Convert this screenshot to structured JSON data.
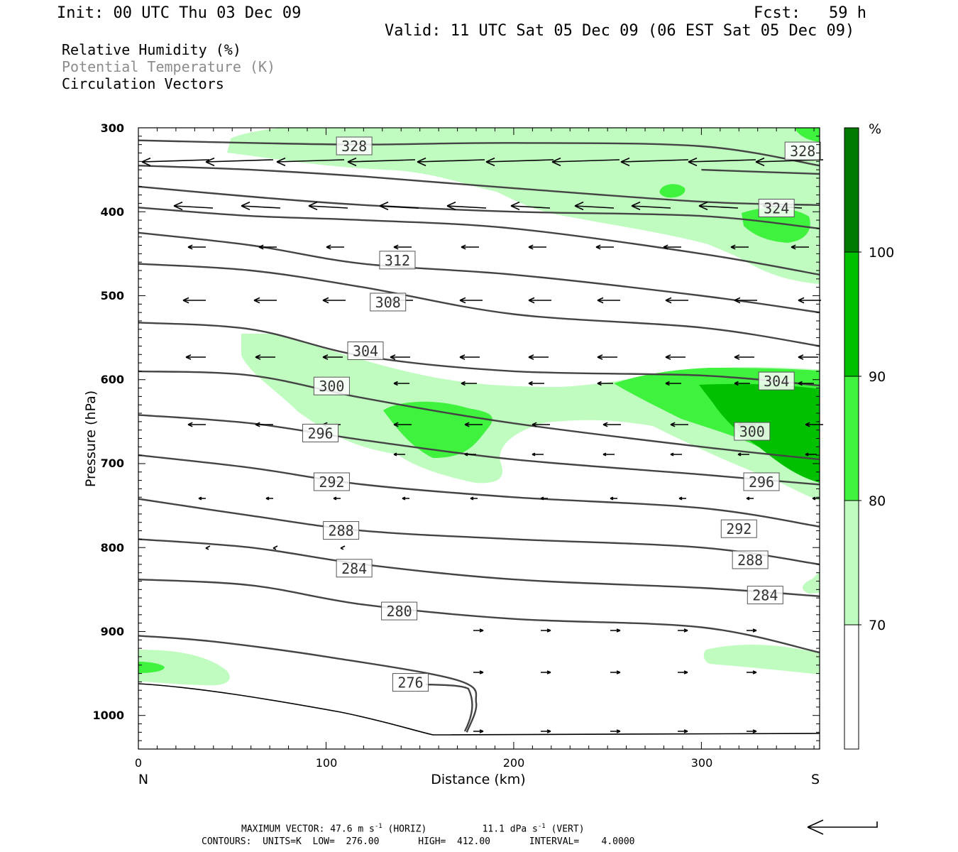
{
  "header": {
    "init": "Init: 00 UTC Thu 03 Dec 09",
    "fcst": "Fcst:   59 h",
    "valid": "Valid: 11 UTC Sat 05 Dec 09 (06 EST Sat 05 Dec 09)"
  },
  "legend": {
    "line1": "Relative Humidity (%)",
    "line2": "Potential Temperature (K)",
    "line3": "Circulation Vectors",
    "line2_color": "#8c8c8c"
  },
  "footer": {
    "max_prefix": "MAXIMUM VECTOR:",
    "max_horiz": "47.6 m s",
    "max_horiz_sup": "-1",
    "max_horiz_suffix": "(HORIZ)",
    "max_vert": "11.1 dPa s",
    "max_vert_sup": "-1",
    "max_vert_suffix": "(VERT)",
    "contours": "CONTOURS:  UNITS=K  LOW=  276.00       HIGH=  412.00       INTERVAL=    4.0000"
  },
  "chart_data": {
    "type": "contour",
    "xlabel": "Distance (km)",
    "ylabel": "Pressure (hPa)",
    "x_ticks": [
      "0",
      "100",
      "200",
      "300"
    ],
    "x_end_labels": {
      "left": "N",
      "right": "S"
    },
    "y_ticks": [
      "300",
      "400",
      "500",
      "600",
      "700",
      "800",
      "900",
      "1000"
    ],
    "xlim": [
      0,
      363
    ],
    "ylim": [
      1040,
      300
    ],
    "colorbar": {
      "unit": "%",
      "labels": [
        "100",
        "90",
        "80",
        "70"
      ],
      "bands": [
        {
          "range": "60-70",
          "color": "#ffffff"
        },
        {
          "range": "70-80",
          "color": "#c0fcc0"
        },
        {
          "range": "80-90",
          "color": "#3ef23e"
        },
        {
          "range": "90-100",
          "color": "#00c000"
        },
        {
          "range": ">100",
          "color": "#007a00"
        }
      ]
    },
    "theta_contours": [
      {
        "value": 276,
        "label": "276",
        "points": [
          [
            0,
            905
          ],
          [
            40,
            912
          ],
          [
            100,
            930
          ],
          [
            170,
            958
          ],
          [
            180,
            985
          ],
          [
            175,
            1020
          ]
        ]
      },
      {
        "value": 280,
        "label": "280",
        "points": [
          [
            0,
            838
          ],
          [
            60,
            845
          ],
          [
            120,
            868
          ],
          [
            200,
            885
          ],
          [
            300,
            895
          ],
          [
            363,
            925
          ]
        ]
      },
      {
        "value": 284,
        "label": "284",
        "points": [
          [
            0,
            790
          ],
          [
            60,
            800
          ],
          [
            120,
            820
          ],
          [
            200,
            838
          ],
          [
            300,
            848
          ],
          [
            363,
            858
          ]
        ]
      },
      {
        "value": 288,
        "label": "288",
        "points": [
          [
            0,
            742
          ],
          [
            60,
            762
          ],
          [
            120,
            780
          ],
          [
            200,
            790
          ],
          [
            300,
            800
          ],
          [
            363,
            820
          ]
        ]
      },
      {
        "value": 292,
        "label": "292",
        "points": [
          [
            0,
            690
          ],
          [
            60,
            705
          ],
          [
            120,
            725
          ],
          [
            200,
            740
          ],
          [
            300,
            753
          ],
          [
            363,
            775
          ]
        ]
      },
      {
        "value": 296,
        "label": "296",
        "points": [
          [
            0,
            642
          ],
          [
            60,
            652
          ],
          [
            120,
            672
          ],
          [
            200,
            695
          ],
          [
            300,
            713
          ],
          [
            363,
            725
          ]
        ]
      },
      {
        "value": 300,
        "label": "300",
        "points": [
          [
            0,
            590
          ],
          [
            60,
            595
          ],
          [
            120,
            622
          ],
          [
            200,
            652
          ],
          [
            300,
            680
          ],
          [
            363,
            695
          ]
        ]
      },
      {
        "value": 304,
        "label": "304",
        "points": [
          [
            0,
            532
          ],
          [
            60,
            540
          ],
          [
            120,
            572
          ],
          [
            200,
            590
          ],
          [
            300,
            595
          ],
          [
            363,
            607
          ]
        ]
      },
      {
        "value": 308,
        "label": "308",
        "points": [
          [
            0,
            462
          ],
          [
            60,
            470
          ],
          [
            120,
            490
          ],
          [
            200,
            522
          ],
          [
            300,
            538
          ],
          [
            363,
            560
          ]
        ]
      },
      {
        "value": 312,
        "label": "312",
        "points": [
          [
            0,
            425
          ],
          [
            60,
            440
          ],
          [
            120,
            462
          ],
          [
            200,
            475
          ],
          [
            300,
            500
          ],
          [
            363,
            520
          ]
        ]
      },
      {
        "value": 316,
        "label": "",
        "points": [
          [
            0,
            395
          ],
          [
            60,
            405
          ],
          [
            120,
            410
          ],
          [
            200,
            420
          ],
          [
            300,
            450
          ],
          [
            363,
            475
          ]
        ]
      },
      {
        "value": 320,
        "label": "",
        "points": [
          [
            0,
            370
          ],
          [
            60,
            382
          ],
          [
            120,
            392
          ],
          [
            200,
            400
          ],
          [
            300,
            405
          ],
          [
            363,
            420
          ]
        ]
      },
      {
        "value": 324,
        "label": "324",
        "points": [
          [
            0,
            345
          ],
          [
            60,
            350
          ],
          [
            120,
            358
          ],
          [
            200,
            372
          ],
          [
            300,
            388
          ],
          [
            363,
            392
          ]
        ]
      },
      {
        "value": 328,
        "label": "328",
        "points": [
          [
            0,
            315
          ],
          [
            60,
            318
          ],
          [
            120,
            320
          ],
          [
            200,
            318
          ],
          [
            300,
            322
          ],
          [
            363,
            345
          ]
        ]
      },
      {
        "value": 332,
        "label": "",
        "points": [
          [
            300,
            350
          ],
          [
            363,
            355
          ]
        ]
      }
    ],
    "theta_labels": [
      {
        "text": "328",
        "x": 115,
        "p": 322
      },
      {
        "text": "328",
        "x": 354,
        "p": 328
      },
      {
        "text": "324",
        "x": 340,
        "p": 396
      },
      {
        "text": "312",
        "x": 138,
        "p": 458
      },
      {
        "text": "308",
        "x": 133,
        "p": 508
      },
      {
        "text": "304",
        "x": 121,
        "p": 566
      },
      {
        "text": "304",
        "x": 340,
        "p": 602
      },
      {
        "text": "300",
        "x": 103,
        "p": 608
      },
      {
        "text": "300",
        "x": 327,
        "p": 662
      },
      {
        "text": "296",
        "x": 97,
        "p": 664
      },
      {
        "text": "296",
        "x": 332,
        "p": 722
      },
      {
        "text": "292",
        "x": 103,
        "p": 722
      },
      {
        "text": "292",
        "x": 320,
        "p": 778
      },
      {
        "text": "288",
        "x": 108,
        "p": 780
      },
      {
        "text": "288",
        "x": 326,
        "p": 815
      },
      {
        "text": "284",
        "x": 115,
        "p": 825
      },
      {
        "text": "284",
        "x": 334,
        "p": 857
      },
      {
        "text": "280",
        "x": 139,
        "p": 876
      },
      {
        "text": "276",
        "x": 145,
        "p": 961
      }
    ]
  }
}
